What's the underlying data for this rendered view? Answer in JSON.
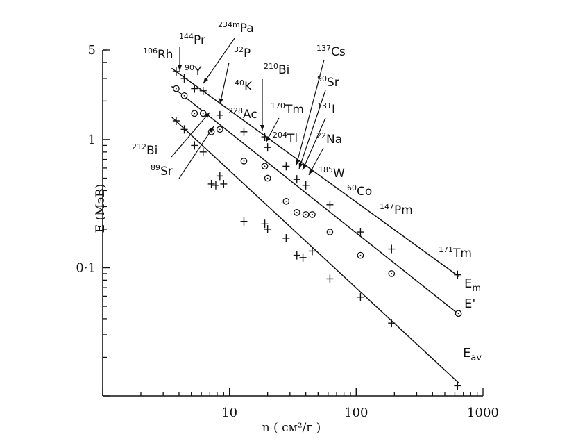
{
  "chart_data": {
    "type": "scatter",
    "title": "",
    "xlabel": "n ( см²/г )",
    "ylabel": "E (МэВ)",
    "x_scale": "log",
    "y_scale": "log",
    "xlim": [
      1,
      1000
    ],
    "ylim": [
      0.01,
      5
    ],
    "x_tick_labels": [
      {
        "value": 10,
        "label": "10"
      },
      {
        "value": 100,
        "label": "100"
      },
      {
        "value": 1000,
        "label": "1000"
      }
    ],
    "y_tick_labels": [
      {
        "value": 5,
        "label": "5"
      },
      {
        "value": 1,
        "label": "1"
      },
      {
        "value": 0.1,
        "label": "0·1"
      }
    ],
    "grid": false,
    "series": [
      {
        "name": "Em",
        "marker": "plus",
        "line": {
          "x": [
            3.5,
            650
          ],
          "y": [
            3.6,
            0.085
          ]
        },
        "x": [
          3.8,
          4.4,
          5.3,
          6.2,
          8.4,
          13,
          19,
          20,
          28,
          34,
          40,
          62,
          108,
          190,
          630
        ],
        "y": [
          3.4,
          3.0,
          2.5,
          2.4,
          1.55,
          1.15,
          1.05,
          0.87,
          0.62,
          0.49,
          0.44,
          0.31,
          0.19,
          0.14,
          0.088
        ]
      },
      {
        "name": "E'",
        "marker": "circle",
        "line": {
          "x": [
            3.5,
            650
          ],
          "y": [
            2.6,
            0.043
          ]
        },
        "x": [
          3.8,
          4.4,
          5.3,
          6.2,
          7.2,
          8.4,
          13,
          19,
          20,
          28,
          34,
          40,
          45,
          62,
          108,
          190,
          640
        ],
        "y": [
          2.5,
          2.2,
          1.6,
          1.6,
          1.15,
          1.2,
          0.68,
          0.62,
          0.5,
          0.33,
          0.27,
          0.26,
          0.26,
          0.19,
          0.125,
          0.09,
          0.044
        ]
      },
      {
        "name": "Eav",
        "marker": "plus",
        "line": {
          "x": [
            3.5,
            650
          ],
          "y": [
            1.5,
            0.0125
          ]
        },
        "x": [
          3.8,
          4.4,
          5.3,
          6.2,
          7.2,
          7.8,
          8.4,
          9.0,
          13,
          19,
          20,
          28,
          34,
          38,
          45,
          62,
          108,
          190,
          630
        ],
        "y": [
          1.4,
          1.2,
          0.9,
          0.8,
          0.45,
          0.44,
          0.52,
          0.45,
          0.23,
          0.22,
          0.2,
          0.17,
          0.125,
          0.12,
          0.135,
          0.082,
          0.059,
          0.037,
          0.012
        ]
      }
    ],
    "curve_labels": [
      {
        "series": "Em",
        "main": "E",
        "sub": "m"
      },
      {
        "series": "E'",
        "main": "E'",
        "sub": ""
      },
      {
        "series": "Eav",
        "main": "E",
        "sub": "av"
      }
    ],
    "isotope_labels": [
      {
        "mass": "106",
        "symbol": "Rh"
      },
      {
        "mass": "144",
        "symbol": "Pr"
      },
      {
        "mass": "90",
        "symbol": "Y"
      },
      {
        "mass": "234m",
        "symbol": "Pa"
      },
      {
        "mass": "32",
        "symbol": "P"
      },
      {
        "mass": "40",
        "symbol": "K"
      },
      {
        "mass": "228",
        "symbol": "Ac"
      },
      {
        "mass": "212",
        "symbol": "Bi"
      },
      {
        "mass": "89",
        "symbol": "Sr"
      },
      {
        "mass": "210",
        "symbol": "Bi"
      },
      {
        "mass": "170",
        "symbol": "Tm"
      },
      {
        "mass": "204",
        "symbol": "Tl"
      },
      {
        "mass": "137",
        "symbol": "Cs"
      },
      {
        "mass": "90",
        "symbol": "Sr"
      },
      {
        "mass": "131",
        "symbol": "I"
      },
      {
        "mass": "22",
        "symbol": "Na"
      },
      {
        "mass": "185",
        "symbol": "W"
      },
      {
        "mass": "60",
        "symbol": "Co"
      },
      {
        "mass": "147",
        "symbol": "Pm"
      },
      {
        "mass": "171",
        "symbol": "Tm"
      }
    ]
  }
}
